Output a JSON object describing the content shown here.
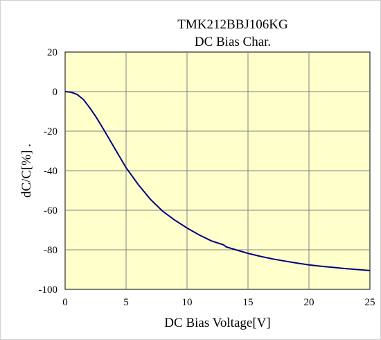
{
  "chart_data": {
    "type": "line",
    "title": "TMK212BBJ106KG",
    "subtitle": "DC Bias Char.",
    "xlabel": "DC Bias Voltage[V]",
    "ylabel": "dC/C[%]  .",
    "xlim": [
      0,
      25
    ],
    "ylim": [
      -100,
      20
    ],
    "xticks": [
      "0",
      "5",
      "10",
      "15",
      "20",
      "25"
    ],
    "yticks": [
      "20",
      "0",
      "-20",
      "-40",
      "-60",
      "-80",
      "-100"
    ],
    "grid": true,
    "colors": {
      "plot_bg": "#FFFFCC",
      "line": "#000080",
      "grid": "#808080"
    },
    "series": [
      {
        "x": [
          0,
          0.5,
          1,
          1.5,
          2,
          2.5,
          3,
          4,
          5,
          6,
          7,
          8,
          9,
          10,
          11,
          12,
          13,
          13.2,
          14,
          15,
          16,
          17,
          18,
          19,
          20,
          21,
          22,
          23,
          24,
          25
        ],
        "y": [
          0,
          -0.3,
          -1.5,
          -4,
          -8,
          -12.5,
          -17.5,
          -28,
          -38.5,
          -47,
          -54.5,
          -60.5,
          -65,
          -69,
          -72.5,
          -75.5,
          -77.5,
          -78.5,
          -80,
          -81.8,
          -83.3,
          -84.6,
          -85.7,
          -86.7,
          -87.6,
          -88.3,
          -88.9,
          -89.5,
          -90,
          -90.5
        ]
      }
    ]
  }
}
